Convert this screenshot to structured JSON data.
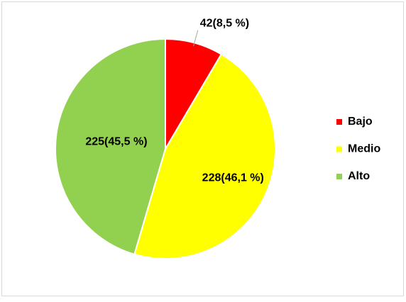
{
  "chart_data": {
    "type": "pie",
    "categories": [
      "Bajo",
      "Medio",
      "Alto"
    ],
    "values": [
      42,
      228,
      225
    ],
    "value_labels": [
      "42(8,5 %)",
      "228(46,1 %)",
      "225(45,5 %)"
    ],
    "colors": [
      "#ff0000",
      "#ffff00",
      "#92d050"
    ],
    "legend": "right"
  }
}
